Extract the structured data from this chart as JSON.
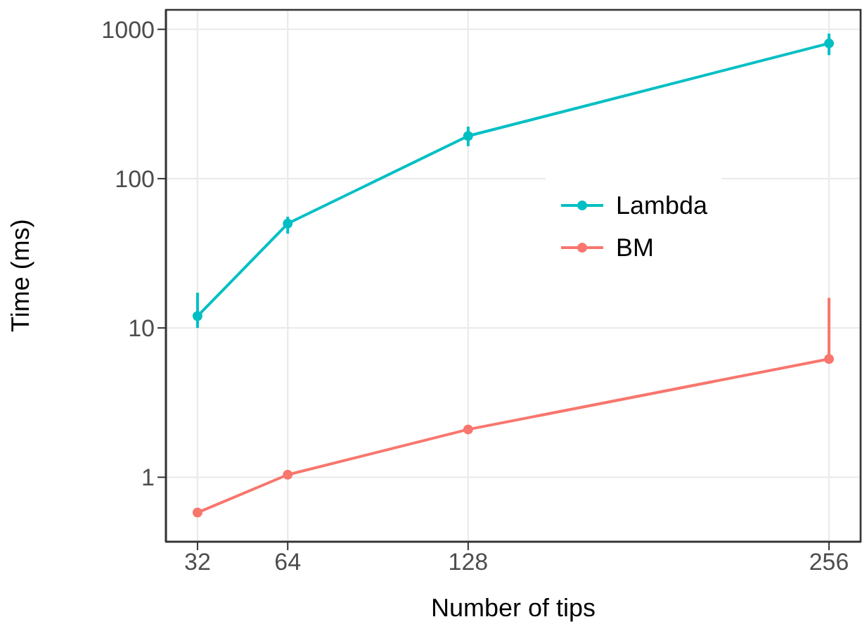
{
  "chart_data": {
    "type": "line",
    "xlabel": "Number of tips",
    "ylabel": "Time (ms)",
    "x": [
      32,
      64,
      128,
      256
    ],
    "series": [
      {
        "name": "Lambda",
        "color": "#00bfc4",
        "values": [
          12,
          50,
          193,
          805
        ],
        "errors": [
          [
            10,
            17.2
          ],
          [
            42.8,
            55.6
          ],
          [
            165,
            223
          ],
          [
            672,
            937
          ]
        ]
      },
      {
        "name": "BM",
        "color": "#f8766d",
        "values": [
          0.58,
          1.04,
          2.09,
          6.2
        ],
        "errors": [
          null,
          null,
          null,
          [
            6.2,
            15.9
          ]
        ]
      }
    ],
    "xlim": [
      20.8,
      267.2
    ],
    "xticks": [
      32,
      64,
      128,
      256
    ],
    "ylim": [
      0.37,
      1350
    ],
    "yticks": [
      1,
      10,
      100,
      1000
    ],
    "log": "y",
    "grid": true,
    "legend": "right",
    "marker": "circle",
    "line_style": "solid"
  }
}
